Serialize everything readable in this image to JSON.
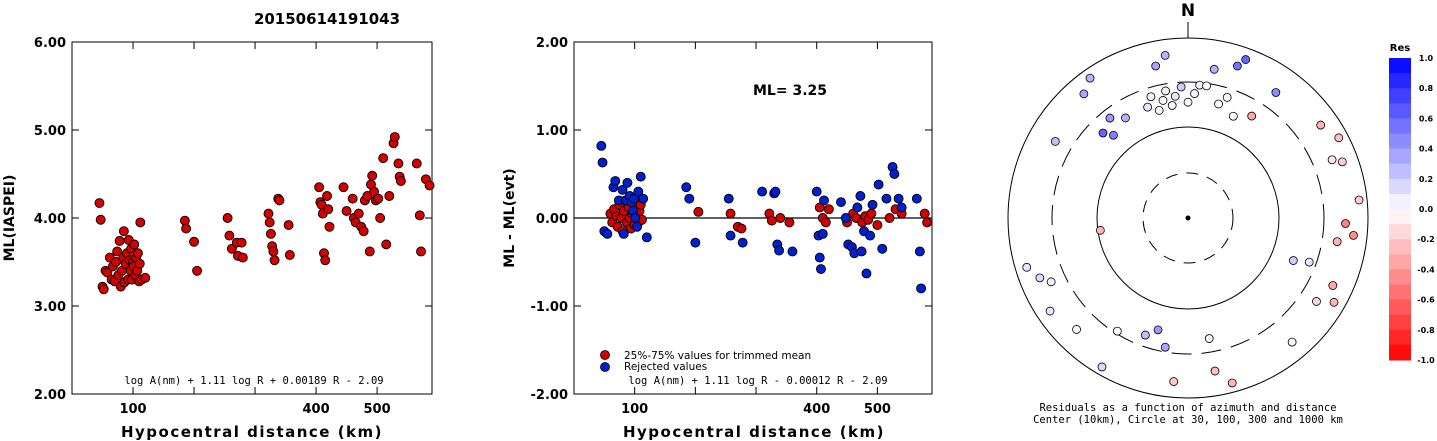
{
  "figure_title": "20150614191043",
  "chart_data": [
    {
      "id": "ml-vs-distance",
      "type": "scatter",
      "ylabel": "ML(IASPEI)",
      "xlabel": "Hypocentral distance (km)",
      "xlim": [
        0,
        590
      ],
      "ylim": [
        2.0,
        6.0
      ],
      "x_ticks": [
        100,
        200,
        300,
        400,
        500
      ],
      "x_tick_labels": [
        "100",
        "",
        "",
        "400",
        "500"
      ],
      "y_ticks": [
        2.0,
        3.0,
        4.0,
        5.0,
        6.0
      ],
      "y_tick_labels": [
        "2.00",
        "3.00",
        "4.00",
        "5.00",
        "6.00"
      ],
      "formula": "log A(nm) + 1.11 log R + 0.00189 R - 2.09",
      "point_color": "#d40000",
      "points": [
        [
          45,
          4.17
        ],
        [
          47,
          3.98
        ],
        [
          50,
          3.22
        ],
        [
          52,
          3.19
        ],
        [
          55,
          3.4
        ],
        [
          58,
          3.38
        ],
        [
          62,
          3.55
        ],
        [
          65,
          3.3
        ],
        [
          67,
          3.45
        ],
        [
          70,
          3.28
        ],
        [
          72,
          3.5
        ],
        [
          74,
          3.62
        ],
        [
          76,
          3.35
        ],
        [
          78,
          3.74
        ],
        [
          80,
          3.22
        ],
        [
          82,
          3.4
        ],
        [
          84,
          3.55
        ],
        [
          85,
          3.85
        ],
        [
          86,
          3.27
        ],
        [
          88,
          3.48
        ],
        [
          90,
          3.6
        ],
        [
          92,
          3.3
        ],
        [
          93,
          3.75
        ],
        [
          95,
          3.52
        ],
        [
          96,
          3.4
        ],
        [
          97,
          3.65
        ],
        [
          98,
          3.3
        ],
        [
          100,
          3.5
        ],
        [
          101,
          3.45
        ],
        [
          102,
          3.7
        ],
        [
          104,
          3.35
        ],
        [
          105,
          3.55
        ],
        [
          107,
          3.4
        ],
        [
          108,
          3.6
        ],
        [
          110,
          3.28
        ],
        [
          111,
          3.48
        ],
        [
          112,
          3.95
        ],
        [
          114,
          3.3
        ],
        [
          120,
          3.32
        ],
        [
          185,
          3.97
        ],
        [
          187,
          3.88
        ],
        [
          200,
          3.73
        ],
        [
          205,
          3.4
        ],
        [
          255,
          4.0
        ],
        [
          258,
          3.8
        ],
        [
          262,
          3.65
        ],
        [
          270,
          3.72
        ],
        [
          272,
          3.57
        ],
        [
          278,
          3.72
        ],
        [
          280,
          3.55
        ],
        [
          322,
          4.05
        ],
        [
          324,
          3.95
        ],
        [
          326,
          3.82
        ],
        [
          328,
          3.68
        ],
        [
          330,
          3.62
        ],
        [
          332,
          3.52
        ],
        [
          338,
          4.22
        ],
        [
          340,
          4.2
        ],
        [
          355,
          3.92
        ],
        [
          357,
          3.58
        ],
        [
          405,
          4.35
        ],
        [
          407,
          4.18
        ],
        [
          409,
          4.15
        ],
        [
          411,
          4.05
        ],
        [
          413,
          3.6
        ],
        [
          415,
          3.52
        ],
        [
          418,
          4.25
        ],
        [
          420,
          4.1
        ],
        [
          422,
          3.9
        ],
        [
          445,
          4.35
        ],
        [
          450,
          4.08
        ],
        [
          460,
          4.22
        ],
        [
          462,
          4.0
        ],
        [
          465,
          3.95
        ],
        [
          470,
          4.05
        ],
        [
          474,
          3.9
        ],
        [
          478,
          3.85
        ],
        [
          480,
          4.2
        ],
        [
          484,
          4.25
        ],
        [
          488,
          3.62
        ],
        [
          490,
          4.38
        ],
        [
          492,
          4.48
        ],
        [
          495,
          4.3
        ],
        [
          498,
          4.2
        ],
        [
          502,
          4.22
        ],
        [
          505,
          4.0
        ],
        [
          510,
          4.68
        ],
        [
          515,
          3.7
        ],
        [
          520,
          4.25
        ],
        [
          527,
          4.85
        ],
        [
          529,
          4.92
        ],
        [
          535,
          4.62
        ],
        [
          537,
          4.47
        ],
        [
          539,
          4.42
        ],
        [
          565,
          4.62
        ],
        [
          570,
          4.03
        ],
        [
          572,
          3.62
        ],
        [
          580,
          4.44
        ],
        [
          586,
          4.37
        ]
      ]
    },
    {
      "id": "residual-vs-distance",
      "type": "scatter",
      "ylabel": "ML - ML(evt)",
      "xlabel": "Hypocentral distance (km)",
      "xlim": [
        0,
        590
      ],
      "ylim": [
        -2.0,
        2.0
      ],
      "x_ticks": [
        100,
        200,
        300,
        400,
        500
      ],
      "x_tick_labels": [
        "100",
        "",
        "",
        "400",
        "500"
      ],
      "y_ticks": [
        -2.0,
        -1.0,
        0.0,
        1.0,
        2.0
      ],
      "y_tick_labels": [
        "-2.00",
        "-1.00",
        "0.00",
        "1.00",
        "2.00"
      ],
      "magnitude_label": "ML= 3.25",
      "formula": "log A(nm) + 1.11 log R - 0.00012 R - 2.09",
      "legend": [
        {
          "label": "25%-75% values for trimmed mean",
          "color": "#d40000"
        },
        {
          "label": "Rejected values",
          "color": "#0020d0"
        }
      ],
      "trimmed": [
        [
          60,
          0.05
        ],
        [
          63,
          -0.05
        ],
        [
          66,
          0.1
        ],
        [
          70,
          0.02
        ],
        [
          72,
          -0.1
        ],
        [
          75,
          0.15
        ],
        [
          78,
          0.0
        ],
        [
          80,
          -0.15
        ],
        [
          82,
          0.08
        ],
        [
          85,
          0.2
        ],
        [
          87,
          -0.05
        ],
        [
          90,
          0.12
        ],
        [
          92,
          0.0
        ],
        [
          94,
          -0.12
        ],
        [
          96,
          0.05
        ],
        [
          98,
          0.18
        ],
        [
          100,
          -0.08
        ],
        [
          102,
          0.1
        ],
        [
          104,
          0.0
        ],
        [
          106,
          -0.05
        ],
        [
          108,
          0.08
        ],
        [
          110,
          0.15
        ],
        [
          112,
          -0.02
        ],
        [
          205,
          0.07
        ],
        [
          258,
          0.05
        ],
        [
          270,
          -0.1
        ],
        [
          276,
          -0.12
        ],
        [
          322,
          0.05
        ],
        [
          326,
          -0.03
        ],
        [
          340,
          0.0
        ],
        [
          355,
          -0.05
        ],
        [
          405,
          0.12
        ],
        [
          410,
          0.0
        ],
        [
          415,
          -0.05
        ],
        [
          420,
          0.1
        ],
        [
          450,
          -0.05
        ],
        [
          460,
          0.05
        ],
        [
          465,
          0.0
        ],
        [
          475,
          -0.05
        ],
        [
          480,
          0.02
        ],
        [
          485,
          -0.02
        ],
        [
          490,
          0.05
        ],
        [
          500,
          -0.08
        ],
        [
          520,
          0.0
        ],
        [
          530,
          0.1
        ],
        [
          540,
          0.05
        ],
        [
          578,
          0.05
        ],
        [
          582,
          -0.05
        ]
      ],
      "rejected": [
        [
          45,
          0.82
        ],
        [
          47,
          0.63
        ],
        [
          50,
          -0.15
        ],
        [
          55,
          -0.18
        ],
        [
          65,
          0.35
        ],
        [
          68,
          0.42
        ],
        [
          74,
          0.2
        ],
        [
          80,
          0.32
        ],
        [
          82,
          -0.18
        ],
        [
          86,
          0.2
        ],
        [
          88,
          0.4
        ],
        [
          92,
          0.25
        ],
        [
          95,
          0.18
        ],
        [
          97,
          0.08
        ],
        [
          99,
          0.22
        ],
        [
          101,
          0.0
        ],
        [
          104,
          -0.1
        ],
        [
          106,
          0.3
        ],
        [
          110,
          0.47
        ],
        [
          114,
          0.22
        ],
        [
          120,
          -0.22
        ],
        [
          185,
          0.35
        ],
        [
          190,
          0.22
        ],
        [
          200,
          -0.28
        ],
        [
          255,
          0.22
        ],
        [
          258,
          -0.2
        ],
        [
          278,
          -0.28
        ],
        [
          310,
          0.3
        ],
        [
          330,
          0.28
        ],
        [
          332,
          0.3
        ],
        [
          335,
          -0.3
        ],
        [
          338,
          -0.37
        ],
        [
          360,
          -0.38
        ],
        [
          400,
          0.3
        ],
        [
          403,
          -0.2
        ],
        [
          405,
          -0.45
        ],
        [
          407,
          -0.58
        ],
        [
          410,
          -0.18
        ],
        [
          412,
          0.2
        ],
        [
          440,
          0.18
        ],
        [
          448,
          0.0
        ],
        [
          452,
          -0.3
        ],
        [
          458,
          -0.33
        ],
        [
          462,
          -0.4
        ],
        [
          467,
          0.12
        ],
        [
          472,
          0.25
        ],
        [
          474,
          -0.38
        ],
        [
          478,
          -0.15
        ],
        [
          482,
          -0.63
        ],
        [
          488,
          -0.2
        ],
        [
          492,
          0.15
        ],
        [
          502,
          0.38
        ],
        [
          508,
          -0.35
        ],
        [
          515,
          0.22
        ],
        [
          525,
          0.58
        ],
        [
          528,
          0.5
        ],
        [
          535,
          0.22
        ],
        [
          540,
          0.12
        ],
        [
          565,
          0.22
        ],
        [
          570,
          -0.38
        ],
        [
          572,
          -0.8
        ]
      ]
    },
    {
      "id": "azimuth-residual-map",
      "type": "scatter",
      "north_label": "N",
      "caption_line1": "Residuals as a function of azimuth and distance",
      "caption_line2": "Center (10km), Circle at 30, 100, 300 and 1000 km",
      "colorbar_title": "Res",
      "colorbar_ticks": [
        "1.0",
        "0.8",
        "0.6",
        "0.4",
        "0.2",
        "0.0",
        "-0.2",
        "-0.4",
        "-0.6",
        "-0.8",
        "-1.0"
      ],
      "color_positive": "#0000ff",
      "color_negative": "#ff0000",
      "points_azimuth_distance_residual": [
        [
          10,
          1000,
          0.3
        ],
        [
          18,
          1000,
          0.55
        ],
        [
          20,
          1000,
          0.6
        ],
        [
          35,
          1000,
          0.45
        ],
        [
          55,
          1000,
          -0.3
        ],
        [
          62,
          1000,
          -0.25
        ],
        [
          68,
          1000,
          -0.1
        ],
        [
          70,
          1000,
          -0.2
        ],
        [
          84,
          1000,
          -0.2
        ],
        [
          92,
          1000,
          -0.5
        ],
        [
          96,
          1000,
          -0.45
        ],
        [
          99,
          1000,
          -0.3
        ],
        [
          115,
          1000,
          -0.35
        ],
        [
          120,
          1000,
          -0.3
        ],
        [
          123,
          1000,
          -0.15
        ],
        [
          140,
          1000,
          -0.05
        ],
        [
          165,
          1000,
          -0.3
        ],
        [
          170,
          1000,
          -0.25
        ],
        [
          185,
          1000,
          -0.2
        ],
        [
          210,
          1000,
          0.15
        ],
        [
          225,
          1000,
          0.0
        ],
        [
          236,
          1000,
          0.1
        ],
        [
          245,
          1000,
          0.05
        ],
        [
          248,
          1000,
          0.15
        ],
        [
          253,
          1000,
          0.1
        ],
        [
          300,
          1000,
          0.25
        ],
        [
          320,
          1000,
          0.35
        ],
        [
          325,
          1000,
          0.3
        ],
        [
          348,
          1000,
          0.35
        ],
        [
          352,
          1000,
          0.3
        ],
        [
          5,
          300,
          0.05
        ],
        [
          15,
          300,
          0.0
        ],
        [
          18,
          300,
          -0.05
        ],
        [
          24,
          300,
          0.0
        ],
        [
          32,
          300,
          -0.35
        ],
        [
          110,
          300,
          0.1
        ],
        [
          112,
          300,
          0.2
        ],
        [
          170,
          300,
          -0.05
        ],
        [
          190,
          300,
          0.35
        ],
        [
          195,
          300,
          0.4
        ],
        [
          200,
          300,
          0.25
        ],
        [
          212,
          300,
          0.0
        ],
        [
          340,
          300,
          0.1
        ],
        [
          343,
          300,
          0.05
        ],
        [
          345,
          300,
          -0.05
        ],
        [
          348,
          300,
          0.0
        ],
        [
          350,
          300,
          0.05
        ],
        [
          352,
          300,
          -0.05
        ],
        [
          354,
          300,
          0.1
        ],
        [
          357,
          300,
          0.2
        ],
        [
          0,
          300,
          0.0
        ],
        [
          3,
          300,
          -0.05
        ],
        [
          8,
          300,
          0.0
        ],
        [
          328,
          300,
          0.3
        ],
        [
          322,
          300,
          0.4
        ],
        [
          318,
          300,
          0.5
        ],
        [
          315,
          300,
          0.6
        ],
        [
          262,
          100,
          -0.3
        ]
      ]
    }
  ]
}
